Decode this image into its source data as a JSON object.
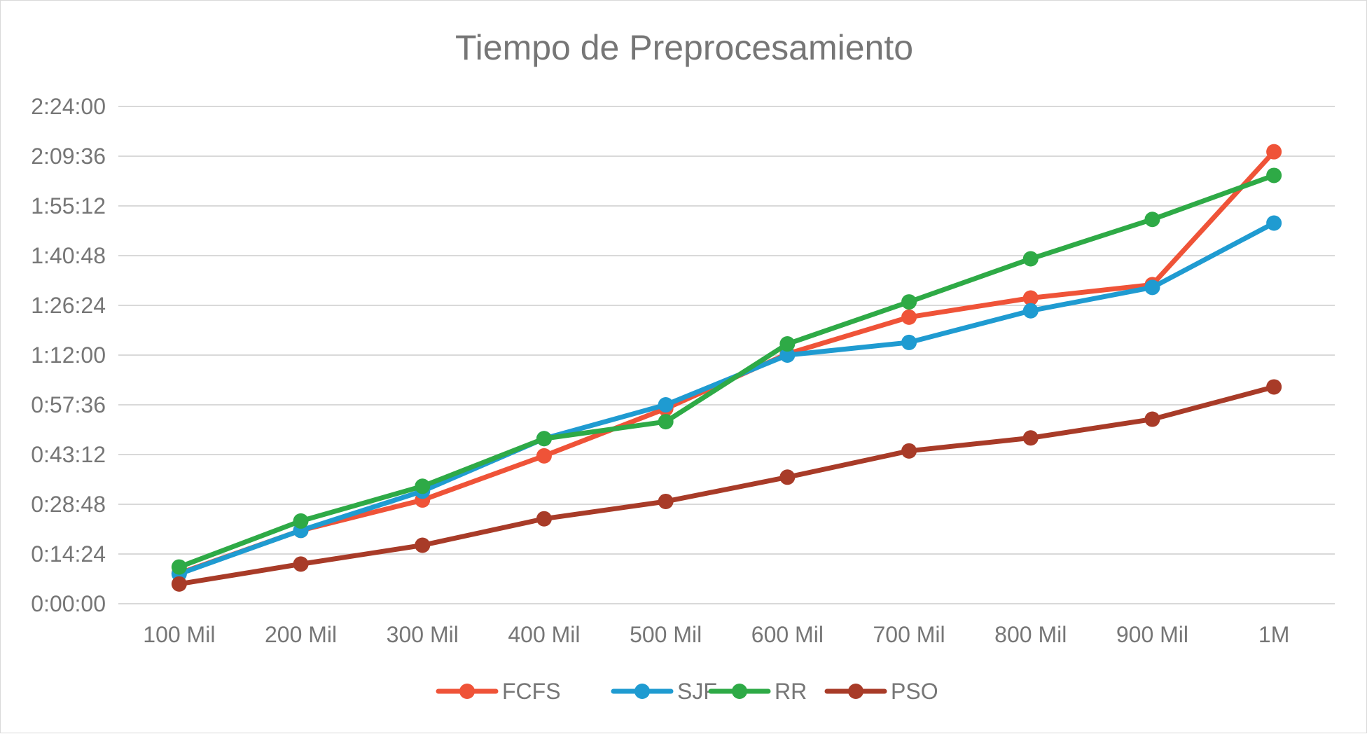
{
  "chart_data": {
    "type": "line",
    "title": "Tiempo de Preprocesamiento",
    "xlabel": "",
    "ylabel": "",
    "categories": [
      "100 Mil",
      "200 Mil",
      "300 Mil",
      "400 Mil",
      "500 Mil",
      "600 Mil",
      "700 Mil",
      "800 Mil",
      "900 Mil",
      "1M"
    ],
    "y_ticks": [
      "0:00:00",
      "0:14:24",
      "0:28:48",
      "0:43:12",
      "0:57:36",
      "1:12:00",
      "1:26:24",
      "1:40:48",
      "1:55:12",
      "2:09:36",
      "2:24:00"
    ],
    "ylim": [
      "0:00:00",
      "2:24:00"
    ],
    "y_unit": "h:mm:ss",
    "grid": true,
    "legend_position": "bottom",
    "series": [
      {
        "name": "FCFS",
        "color": "#ef5338",
        "values": [
          "0:08:49",
          "0:21:14",
          "0:30:02",
          "0:42:49",
          "0:56:30",
          "1:12:22",
          "1:22:59",
          "1:28:32",
          "1:32:24",
          "2:10:53"
        ]
      },
      {
        "name": "SJF",
        "color": "#1f9bd1",
        "values": [
          "0:08:37",
          "0:21:14",
          "0:32:35",
          "0:47:49",
          "0:57:36",
          "1:12:00",
          "1:15:40",
          "1:24:50",
          "1:31:36",
          "1:50:14"
        ]
      },
      {
        "name": "RR",
        "color": "#2eaa46",
        "values": [
          "0:10:38",
          "0:23:57",
          "0:34:01",
          "0:47:49",
          "0:52:43",
          "1:15:14",
          "1:27:24",
          "1:39:53",
          "1:51:18",
          "2:04:02"
        ]
      },
      {
        "name": "PSO",
        "color": "#a83b28",
        "values": [
          "0:05:43",
          "0:11:29",
          "0:16:56",
          "0:24:36",
          "0:29:37",
          "0:36:39",
          "0:44:15",
          "0:48:01",
          "0:53:26",
          "1:02:47"
        ]
      }
    ]
  }
}
